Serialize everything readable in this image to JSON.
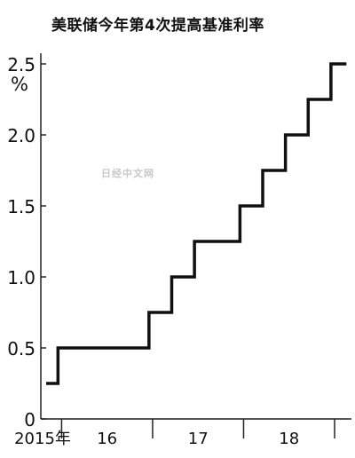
{
  "chart_data": {
    "type": "line",
    "step": true,
    "title": "美联储今年第4次提高基准利率",
    "ylabel": "%",
    "ylim": [
      0,
      2.5
    ],
    "yticks": [
      "0",
      "0.5",
      "1.0",
      "1.5",
      "2.0",
      "2.5"
    ],
    "xticks": [
      "2015年",
      "16",
      "17",
      "18"
    ],
    "xlim": [
      2015.83,
      2019.0
    ],
    "grid": false,
    "series": [
      {
        "points": [
          {
            "x": 2015.83,
            "y": 0.25
          },
          {
            "x": 2015.96,
            "y": 0.5
          },
          {
            "x": 2016.96,
            "y": 0.75
          },
          {
            "x": 2017.21,
            "y": 1.0
          },
          {
            "x": 2017.46,
            "y": 1.25
          },
          {
            "x": 2017.96,
            "y": 1.5
          },
          {
            "x": 2018.21,
            "y": 1.75
          },
          {
            "x": 2018.46,
            "y": 2.0
          },
          {
            "x": 2018.71,
            "y": 2.25
          },
          {
            "x": 2018.96,
            "y": 2.5
          }
        ],
        "end_x": 2019.13,
        "color": "#111111"
      }
    ]
  },
  "watermark": "日经中文网"
}
